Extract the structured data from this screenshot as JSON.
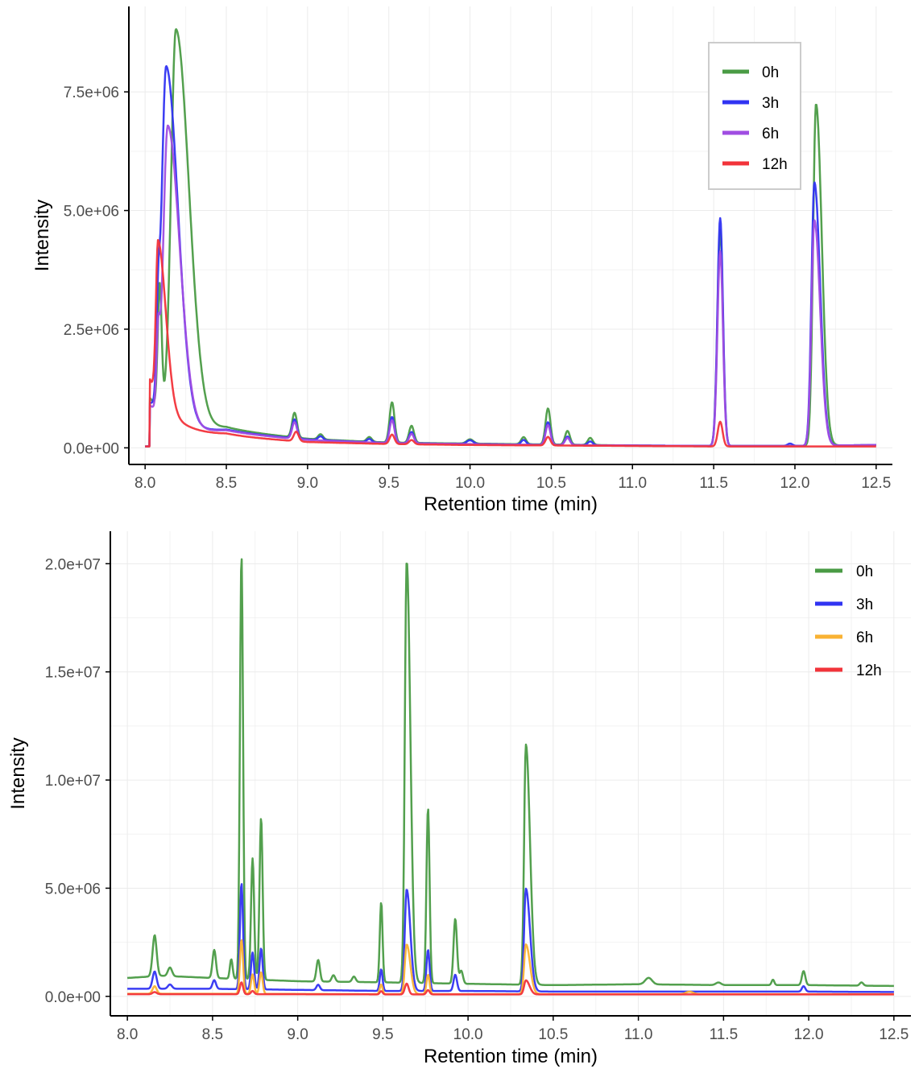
{
  "chart_data": [
    {
      "type": "line",
      "title": "",
      "xlabel": "Retention time (min)",
      "ylabel": "Intensity",
      "xlim": [
        7.9,
        12.6
      ],
      "ylim": [
        -350000,
        9300000
      ],
      "x_ticks": [
        8.0,
        8.5,
        9.0,
        9.5,
        10.0,
        10.5,
        11.0,
        11.5,
        12.0,
        12.5
      ],
      "x_tick_labels": [
        "8.0",
        "8.5",
        "9.0",
        "9.5",
        "10.0",
        "10.5",
        "11.0",
        "11.5",
        "12.0",
        "12.5"
      ],
      "y_ticks": [
        0,
        2500000,
        5000000,
        7500000
      ],
      "y_tick_labels": [
        "0.0e+00",
        "2.5e+06",
        "5.0e+06",
        "7.5e+06"
      ],
      "grid": true,
      "legend_position": "top-right",
      "legend_boxed": true,
      "series": [
        {
          "name": "0h",
          "color": "#4a9b45",
          "baseline": [
            [
              8.0,
              30000
            ],
            [
              8.5,
              320000
            ],
            [
              9.0,
              180000
            ],
            [
              9.5,
              110000
            ],
            [
              10.0,
              90000
            ],
            [
              10.5,
              70000
            ],
            [
              11.0,
              50000
            ],
            [
              11.5,
              40000
            ],
            [
              12.0,
              40000
            ],
            [
              12.5,
              60000
            ]
          ],
          "onset": 8.03,
          "hump": {
            "height": 1000000,
            "decay": 0.22
          },
          "peaks": [
            [
              8.09,
              2600000,
              0.012
            ],
            [
              8.19,
              8200000,
              0.03,
              0.1
            ],
            [
              8.92,
              520000,
              0.015
            ],
            [
              9.08,
              110000,
              0.015
            ],
            [
              9.38,
              100000,
              0.015
            ],
            [
              9.52,
              850000,
              0.015
            ],
            [
              9.64,
              360000,
              0.015
            ],
            [
              10.0,
              90000,
              0.02
            ],
            [
              10.33,
              150000,
              0.015
            ],
            [
              10.48,
              760000,
              0.015
            ],
            [
              10.6,
              290000,
              0.015
            ],
            [
              10.74,
              150000,
              0.015
            ],
            [
              11.54,
              4550000,
              0.017
            ],
            [
              12.13,
              7200000,
              0.018,
              0.035
            ]
          ]
        },
        {
          "name": "3h",
          "color": "#3033f2",
          "baseline": [
            [
              8.0,
              30000
            ],
            [
              8.5,
              300000
            ],
            [
              9.0,
              170000
            ],
            [
              9.5,
              100000
            ],
            [
              10.0,
              80000
            ],
            [
              10.5,
              60000
            ],
            [
              11.0,
              50000
            ],
            [
              11.5,
              40000
            ],
            [
              12.0,
              40000
            ],
            [
              12.5,
              60000
            ]
          ],
          "onset": 8.03,
          "hump": {
            "height": 900000,
            "decay": 0.2
          },
          "peaks": [
            [
              8.08,
              1500000,
              0.01
            ],
            [
              8.13,
              7400000,
              0.028,
              0.09
            ],
            [
              8.92,
              400000,
              0.015
            ],
            [
              9.08,
              80000,
              0.015
            ],
            [
              9.38,
              70000,
              0.015
            ],
            [
              9.52,
              550000,
              0.015
            ],
            [
              9.64,
              240000,
              0.015
            ],
            [
              10.0,
              80000,
              0.02
            ],
            [
              10.33,
              100000,
              0.015
            ],
            [
              10.48,
              480000,
              0.015
            ],
            [
              10.6,
              180000,
              0.015
            ],
            [
              10.74,
              80000,
              0.015
            ],
            [
              11.54,
              4800000,
              0.017
            ],
            [
              11.97,
              50000,
              0.015
            ],
            [
              12.12,
              5550000,
              0.018,
              0.035
            ]
          ]
        },
        {
          "name": "6h",
          "color": "#a04de2",
          "baseline": [
            [
              8.0,
              30000
            ],
            [
              8.5,
              290000
            ],
            [
              9.0,
              160000
            ],
            [
              9.5,
              100000
            ],
            [
              10.0,
              80000
            ],
            [
              10.5,
              60000
            ],
            [
              11.0,
              50000
            ],
            [
              11.5,
              40000
            ],
            [
              12.0,
              40000
            ],
            [
              12.5,
              60000
            ]
          ],
          "onset": 8.03,
          "hump": {
            "height": 850000,
            "decay": 0.2
          },
          "peaks": [
            [
              8.08,
              1400000,
              0.01
            ],
            [
              8.14,
              6200000,
              0.028,
              0.09
            ],
            [
              8.92,
              350000,
              0.015
            ],
            [
              9.52,
              480000,
              0.015
            ],
            [
              9.64,
              200000,
              0.015
            ],
            [
              10.48,
              420000,
              0.015
            ],
            [
              10.6,
              150000,
              0.015
            ],
            [
              11.54,
              4100000,
              0.017
            ],
            [
              12.12,
              4750000,
              0.018,
              0.035
            ]
          ]
        },
        {
          "name": "12h",
          "color": "#f2333a",
          "baseline": [
            [
              8.0,
              30000
            ],
            [
              8.5,
              230000
            ],
            [
              9.0,
              120000
            ],
            [
              9.5,
              80000
            ],
            [
              10.0,
              60000
            ],
            [
              10.5,
              50000
            ],
            [
              11.0,
              40000
            ],
            [
              11.5,
              30000
            ],
            [
              12.0,
              30000
            ],
            [
              12.5,
              30000
            ]
          ],
          "onset": 8.03,
          "hump": {
            "height": 1400000,
            "decay": 0.16
          },
          "peaks": [
            [
              8.08,
              3300000,
              0.013,
              0.07
            ],
            [
              8.93,
              200000,
              0.015
            ],
            [
              9.52,
              200000,
              0.015
            ],
            [
              9.64,
              90000,
              0.015
            ],
            [
              10.48,
              180000,
              0.015
            ],
            [
              11.54,
              520000,
              0.015
            ]
          ]
        }
      ]
    },
    {
      "type": "line",
      "title": "",
      "xlabel": "Retention time (min)",
      "ylabel": "Intensity",
      "xlim": [
        7.9,
        12.6
      ],
      "ylim": [
        -900000,
        21500000
      ],
      "x_ticks": [
        8.0,
        8.5,
        9.0,
        9.5,
        10.0,
        10.5,
        11.0,
        11.5,
        12.0,
        12.5
      ],
      "x_tick_labels": [
        "8.0",
        "8.5",
        "9.0",
        "9.5",
        "10.0",
        "10.5",
        "11.0",
        "11.5",
        "12.0",
        "12.5"
      ],
      "y_ticks": [
        0,
        5000000,
        10000000,
        15000000,
        20000000
      ],
      "y_tick_labels": [
        "0.0e+00",
        "5.0e+06",
        "1.0e+07",
        "1.5e+07",
        "2.0e+07"
      ],
      "grid": true,
      "legend_position": "top-right",
      "legend_boxed": false,
      "series": [
        {
          "name": "0h",
          "color": "#4a9b45",
          "baseline": [
            [
              8.0,
              850000
            ],
            [
              8.2,
              950000
            ],
            [
              8.5,
              850000
            ],
            [
              9.0,
              700000
            ],
            [
              9.5,
              650000
            ],
            [
              10.0,
              580000
            ],
            [
              10.5,
              520000
            ],
            [
              11.0,
              560000
            ],
            [
              11.5,
              520000
            ],
            [
              12.0,
              520000
            ],
            [
              12.5,
              480000
            ]
          ],
          "peaks": [
            [
              8.16,
              1900000,
              0.012
            ],
            [
              8.25,
              400000,
              0.012
            ],
            [
              8.51,
              1300000,
              0.01
            ],
            [
              8.61,
              900000,
              0.008
            ],
            [
              8.67,
              19600000,
              0.009
            ],
            [
              8.735,
              5600000,
              0.009
            ],
            [
              8.785,
              7500000,
              0.009
            ],
            [
              9.12,
              1000000,
              0.01
            ],
            [
              9.21,
              300000,
              0.01
            ],
            [
              9.33,
              250000,
              0.01
            ],
            [
              9.49,
              3700000,
              0.008
            ],
            [
              9.64,
              19500000,
              0.011,
              0.02
            ],
            [
              9.765,
              8100000,
              0.009
            ],
            [
              9.925,
              3000000,
              0.01
            ],
            [
              9.96,
              600000,
              0.01
            ],
            [
              10.34,
              11100000,
              0.011,
              0.025
            ],
            [
              11.06,
              300000,
              0.02
            ],
            [
              11.47,
              120000,
              0.015
            ],
            [
              11.79,
              250000,
              0.008
            ],
            [
              11.97,
              650000,
              0.01
            ],
            [
              12.31,
              150000,
              0.01
            ]
          ]
        },
        {
          "name": "3h",
          "color": "#3033f2",
          "baseline": [
            [
              8.0,
              350000
            ],
            [
              8.5,
              350000
            ],
            [
              9.0,
              300000
            ],
            [
              9.5,
              250000
            ],
            [
              10.0,
              250000
            ],
            [
              10.5,
              220000
            ],
            [
              11.0,
              220000
            ],
            [
              11.5,
              220000
            ],
            [
              12.0,
              220000
            ],
            [
              12.5,
              200000
            ]
          ],
          "peaks": [
            [
              8.16,
              800000,
              0.012
            ],
            [
              8.25,
              200000,
              0.012
            ],
            [
              8.51,
              400000,
              0.01
            ],
            [
              8.67,
              4900000,
              0.009
            ],
            [
              8.735,
              1700000,
              0.009
            ],
            [
              8.785,
              1900000,
              0.009
            ],
            [
              9.12,
              250000,
              0.01
            ],
            [
              9.49,
              1000000,
              0.008
            ],
            [
              9.64,
              4700000,
              0.011,
              0.02
            ],
            [
              9.765,
              1900000,
              0.009
            ],
            [
              9.925,
              750000,
              0.01
            ],
            [
              10.34,
              4750000,
              0.011,
              0.025
            ],
            [
              11.97,
              250000,
              0.01
            ]
          ]
        },
        {
          "name": "6h",
          "color": "#f9b233",
          "baseline": [
            [
              8.0,
              120000
            ],
            [
              8.5,
              120000
            ],
            [
              9.0,
              110000
            ],
            [
              9.5,
              100000
            ],
            [
              10.0,
              100000
            ],
            [
              10.5,
              100000
            ],
            [
              11.0,
              100000
            ],
            [
              11.5,
              100000
            ],
            [
              12.0,
              100000
            ],
            [
              12.5,
              100000
            ]
          ],
          "peaks": [
            [
              8.16,
              350000,
              0.012
            ],
            [
              8.67,
              2500000,
              0.009
            ],
            [
              8.735,
              900000,
              0.009
            ],
            [
              8.785,
              1000000,
              0.009
            ],
            [
              9.49,
              450000,
              0.008
            ],
            [
              9.64,
              2300000,
              0.011,
              0.02
            ],
            [
              9.765,
              900000,
              0.009
            ],
            [
              10.34,
              2300000,
              0.011,
              0.025
            ],
            [
              11.3,
              120000,
              0.02
            ]
          ]
        },
        {
          "name": "12h",
          "color": "#f2333a",
          "baseline": [
            [
              8.0,
              100000
            ],
            [
              8.5,
              100000
            ],
            [
              9.0,
              100000
            ],
            [
              9.5,
              90000
            ],
            [
              10.0,
              90000
            ],
            [
              10.5,
              90000
            ],
            [
              11.0,
              90000
            ],
            [
              11.5,
              90000
            ],
            [
              12.0,
              90000
            ],
            [
              12.5,
              90000
            ]
          ],
          "peaks": [
            [
              8.16,
              100000,
              0.012
            ],
            [
              8.67,
              550000,
              0.009
            ],
            [
              8.735,
              150000,
              0.009
            ],
            [
              9.49,
              150000,
              0.008
            ],
            [
              9.64,
              500000,
              0.011
            ],
            [
              9.765,
              200000,
              0.009
            ],
            [
              10.34,
              650000,
              0.011,
              0.02
            ]
          ]
        }
      ]
    }
  ]
}
